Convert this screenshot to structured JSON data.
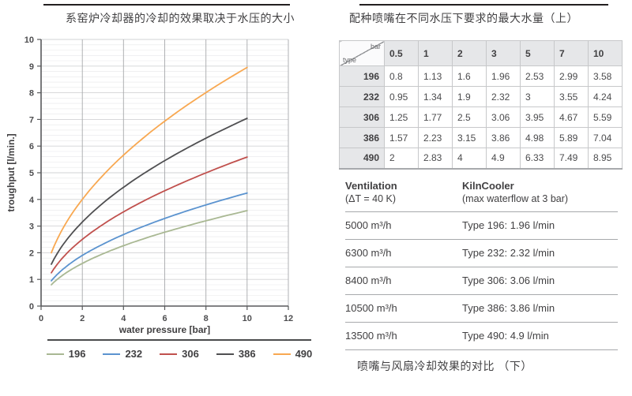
{
  "left": {
    "title": "系窑炉冷却器的冷却的效果取决于水压的大小"
  },
  "chart_data": {
    "type": "line",
    "title": "系窑炉冷却器的冷却的效果取决于水压的大小",
    "xlabel": "water pressure [bar]",
    "ylabel": "troughput [l/min.]",
    "xlim": [
      0,
      12
    ],
    "ylim": [
      0,
      10
    ],
    "x_ticks": [
      0,
      2,
      4,
      6,
      8,
      10,
      12
    ],
    "y_ticks": [
      0,
      1,
      2,
      3,
      4,
      5,
      6,
      7,
      8,
      9,
      10
    ],
    "grid": true,
    "legend_position": "bottom",
    "x": [
      0.5,
      1,
      2,
      3,
      5,
      7,
      10
    ],
    "series": [
      {
        "name": "196",
        "color": "#a9b893",
        "values": [
          0.8,
          1.13,
          1.6,
          1.96,
          2.53,
          2.99,
          3.58
        ]
      },
      {
        "name": "232",
        "color": "#5b93cf",
        "values": [
          0.95,
          1.34,
          1.9,
          2.32,
          3,
          3.55,
          4.24
        ]
      },
      {
        "name": "306",
        "color": "#c0504d",
        "values": [
          1.25,
          1.77,
          2.5,
          3.06,
          3.95,
          4.67,
          5.59
        ]
      },
      {
        "name": "386",
        "color": "#4f4f51",
        "values": [
          1.57,
          2.23,
          3.15,
          3.86,
          4.98,
          5.89,
          7.04
        ]
      },
      {
        "name": "490",
        "color": "#f8a851",
        "values": [
          2,
          2.83,
          4,
          4.9,
          6.33,
          7.49,
          8.95
        ]
      }
    ]
  },
  "table": {
    "title": "配种喷嘴在不同水压下要求的最大水量（上）",
    "corner": {
      "top": "bar",
      "bottom": "type"
    },
    "columns": [
      "0.5",
      "1",
      "2",
      "3",
      "5",
      "7",
      "10"
    ],
    "rows": [
      {
        "type": "196",
        "values": [
          "0.8",
          "1.13",
          "1.6",
          "1.96",
          "2.53",
          "2.99",
          "3.58"
        ]
      },
      {
        "type": "232",
        "values": [
          "0.95",
          "1.34",
          "1.9",
          "2.32",
          "3",
          "3.55",
          "4.24"
        ]
      },
      {
        "type": "306",
        "values": [
          "1.25",
          "1.77",
          "2.5",
          "3.06",
          "3.95",
          "4.67",
          "5.59"
        ]
      },
      {
        "type": "386",
        "values": [
          "1.57",
          "2.23",
          "3.15",
          "3.86",
          "4.98",
          "5.89",
          "7.04"
        ]
      },
      {
        "type": "490",
        "values": [
          "2",
          "2.83",
          "4",
          "4.9",
          "6.33",
          "7.49",
          "8.95"
        ]
      }
    ]
  },
  "comparison": {
    "col1_header": "Ventilation",
    "col1_subheader": "(ΔT = 40 K)",
    "col2_header": "KilnCooler",
    "col2_subheader": "(max waterflow at 3 bar)",
    "rows": [
      {
        "ventilation": "5000 m³/h",
        "kilncooler": "Type 196: 1.96 l/min"
      },
      {
        "ventilation": "6300 m³/h",
        "kilncooler": "Type 232: 2.32 l/min"
      },
      {
        "ventilation": "8400 m³/h",
        "kilncooler": "Type 306: 3.06 l/min"
      },
      {
        "ventilation": "10500 m³/h",
        "kilncooler": "Type 386: 3.86 l/min"
      },
      {
        "ventilation": "13500 m³/h",
        "kilncooler": "Type 490: 4.9 l/min"
      }
    ],
    "caption": "喷嘴与风扇冷却效果的对比 （下）"
  }
}
